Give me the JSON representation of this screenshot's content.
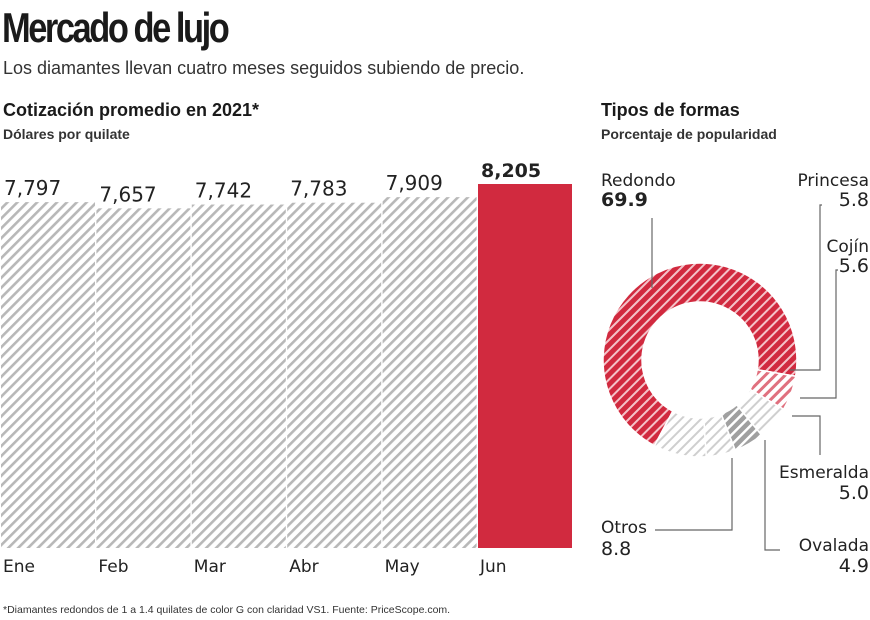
{
  "header": {
    "title": "Mercado de lujo",
    "subtitle": "Los diamantes llevan cuatro meses seguidos subiendo de precio."
  },
  "footnote": "*Diamantes redondos de 1 a 1.4 quilates de color G con claridad VS1. Fuente: PriceScope.com.",
  "colors": {
    "accent": "#d12a3f",
    "hatch": "#bdbdbd",
    "dark_hatch": "#9a9a9a"
  },
  "chart_data": [
    {
      "type": "bar",
      "title": "Cotización promedio en 2021*",
      "subtitle": "Dólares por quilate",
      "categories": [
        "Ene",
        "Feb",
        "Mar",
        "Abr",
        "May",
        "Jun"
      ],
      "values": [
        7797,
        7657,
        7742,
        7783,
        7909,
        8205
      ],
      "labels": [
        "7,797",
        "7,657",
        "7,742",
        "7,783",
        "7,909",
        "8,205"
      ],
      "highlight": "Jun",
      "ylim": [
        0,
        8205
      ],
      "grid": false
    },
    {
      "type": "pie",
      "variant": "donut",
      "title": "Tipos de formas",
      "subtitle": "Porcentaje de popularidad",
      "slices": [
        {
          "label": "Redondo",
          "value": 69.9,
          "display": "69.9"
        },
        {
          "label": "Princesa",
          "value": 5.8,
          "display": "5.8"
        },
        {
          "label": "Cojín",
          "value": 5.6,
          "display": "5.6"
        },
        {
          "label": "Esmeralda",
          "value": 5.0,
          "display": "5.0"
        },
        {
          "label": "Ovalada",
          "value": 4.9,
          "display": "4.9"
        },
        {
          "label": "Otros",
          "value": 8.8,
          "display": "8.8"
        }
      ]
    }
  ]
}
